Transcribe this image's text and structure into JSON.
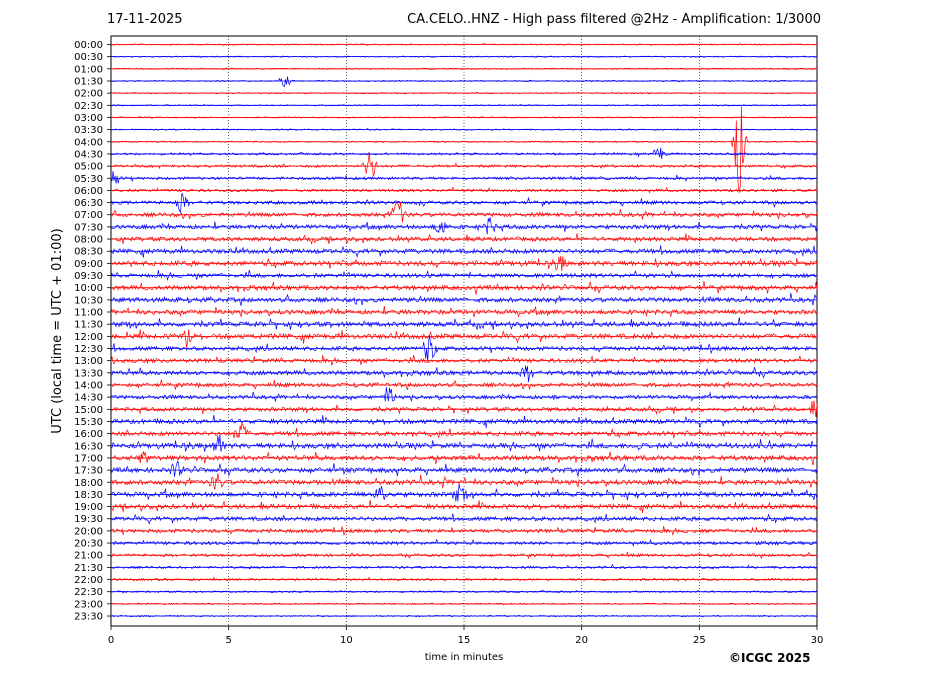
{
  "header": {
    "date": "17-11-2025",
    "station_title": "CA.CELO..HNZ - High pass filtered @2Hz - Amplification: 1/3000"
  },
  "footer": {
    "copyright": "©ICGC 2025"
  },
  "chart_data": {
    "type": "line",
    "title": "CA.CELO..HNZ - High pass filtered @2Hz - Amplification: 1/3000",
    "xlabel": "time in minutes",
    "ylabel": "UTC (local time = UTC + 01:00)",
    "xlim": [
      0,
      30
    ],
    "x_ticks": [
      0,
      5,
      10,
      15,
      20,
      25,
      30
    ],
    "grid": "vertical dotted lines at x ticks",
    "rows": [
      "00:00",
      "00:30",
      "01:00",
      "01:30",
      "02:00",
      "02:30",
      "03:00",
      "03:30",
      "04:00",
      "04:30",
      "05:00",
      "05:30",
      "06:00",
      "06:30",
      "07:00",
      "07:30",
      "08:00",
      "08:30",
      "09:00",
      "09:30",
      "10:00",
      "10:30",
      "11:00",
      "11:30",
      "12:00",
      "12:30",
      "13:00",
      "13:30",
      "14:00",
      "14:30",
      "15:00",
      "15:30",
      "16:00",
      "16:30",
      "17:00",
      "17:30",
      "18:00",
      "18:30",
      "19:00",
      "19:30",
      "20:00",
      "20:30",
      "21:00",
      "21:30",
      "22:00",
      "22:30",
      "23:00",
      "23:30"
    ],
    "series_colors": [
      "#ff0000",
      "#0000ff"
    ],
    "activity_level": [
      0.05,
      0.06,
      0.06,
      0.07,
      0.06,
      0.05,
      0.05,
      0.06,
      0.08,
      0.25,
      0.35,
      0.4,
      0.4,
      0.55,
      0.65,
      0.7,
      0.7,
      0.8,
      0.85,
      0.7,
      0.8,
      0.8,
      0.8,
      0.85,
      0.9,
      0.7,
      0.7,
      0.75,
      0.65,
      0.6,
      0.65,
      0.8,
      0.75,
      0.9,
      0.85,
      0.85,
      0.85,
      0.85,
      0.8,
      0.7,
      0.6,
      0.5,
      0.4,
      0.3,
      0.25,
      0.15,
      0.1,
      0.08
    ],
    "events": [
      {
        "row": "01:30",
        "minute": 7.4,
        "amplitude": 0.5
      },
      {
        "row": "04:00",
        "minute": 26.7,
        "amplitude": 4.5
      },
      {
        "row": "04:30",
        "minute": 23.3,
        "amplitude": 0.6
      },
      {
        "row": "05:00",
        "minute": 11.0,
        "amplitude": 1.4
      },
      {
        "row": "05:30",
        "minute": 0.1,
        "amplitude": 0.8
      },
      {
        "row": "06:30",
        "minute": 3.0,
        "amplitude": 0.8
      },
      {
        "row": "07:00",
        "minute": 12.2,
        "amplitude": 1.6
      },
      {
        "row": "07:30",
        "minute": 14.0,
        "amplitude": 0.7
      },
      {
        "row": "07:30",
        "minute": 16.1,
        "amplitude": 0.7
      },
      {
        "row": "09:00",
        "minute": 19.1,
        "amplitude": 0.6
      },
      {
        "row": "12:00",
        "minute": 3.2,
        "amplitude": 0.9
      },
      {
        "row": "12:30",
        "minute": 13.5,
        "amplitude": 1.2
      },
      {
        "row": "13:30",
        "minute": 17.7,
        "amplitude": 0.7
      },
      {
        "row": "14:30",
        "minute": 11.8,
        "amplitude": 0.8
      },
      {
        "row": "15:00",
        "minute": 30.0,
        "amplitude": 0.9
      },
      {
        "row": "16:00",
        "minute": 5.5,
        "amplitude": 1.0
      },
      {
        "row": "16:30",
        "minute": 4.6,
        "amplitude": 0.8
      },
      {
        "row": "17:00",
        "minute": 1.4,
        "amplitude": 0.8
      },
      {
        "row": "17:30",
        "minute": 2.8,
        "amplitude": 0.6
      },
      {
        "row": "18:00",
        "minute": 4.5,
        "amplitude": 0.7
      },
      {
        "row": "18:30",
        "minute": 14.8,
        "amplitude": 0.7
      },
      {
        "row": "18:30",
        "minute": 11.5,
        "amplitude": 0.8
      }
    ]
  }
}
